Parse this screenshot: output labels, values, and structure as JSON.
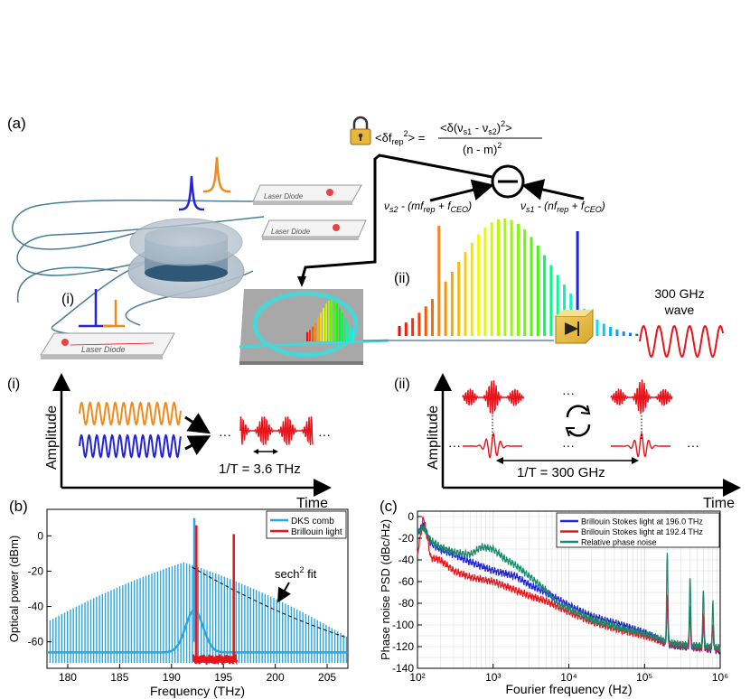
{
  "panel_a": {
    "label": "(a)",
    "formula_lhs": "<δf",
    "formula_lhs_sub": "rep",
    "formula_lhs_end": "> =",
    "formula_num": "<δ(ν",
    "formula_num_s1": "s1",
    "formula_num_mid": " - ν",
    "formula_num_s2": "s2",
    "formula_num_end": ")",
    "formula_num_sup": "2",
    "formula_num_close": ">",
    "formula_den": "(n - m)",
    "left_beat": "ν",
    "left_beat_sub": "s2",
    "left_beat_rest": " - (mf",
    "left_beat_rep": "rep",
    "left_beat_plus": " + f",
    "left_beat_ceo": "CEO",
    "left_beat_close": ")",
    "right_beat": "ν",
    "right_beat_sub": "s1",
    "right_beat_rest": " - (nf",
    "right_beat_rep": "rep",
    "right_beat_plus": " + f",
    "right_beat_ceo": "CEO",
    "right_beat_close": ")",
    "laser1": "Laser Diode",
    "laser2": "Laser Diode",
    "laser3": "Laser Diode",
    "marker_i": "(i)",
    "marker_ii": "(ii)",
    "wave_label_1": "300 GHz",
    "wave_label_2": "wave"
  },
  "sub_i": {
    "label": "(i)",
    "ylabel": "Amplitude",
    "xlabel": "Time",
    "period": "1/T = 3.6 THz",
    "dots": "···"
  },
  "sub_ii": {
    "label": "(ii)",
    "ylabel": "Amplitude",
    "xlabel": "Time",
    "period": "1/T = 300 GHz",
    "dots": "···"
  },
  "colors": {
    "orange": "#f08a1c",
    "blue": "#2323d8",
    "red": "#e8141c",
    "comb_blue": "#2aa5e0",
    "green": "#1a8a6a"
  },
  "chart_data": [
    {
      "type": "line",
      "panel": "(b)",
      "xlabel": "Frequency (THz)",
      "ylabel": "Optical power (dBm)",
      "xlim": [
        178,
        207
      ],
      "ylim": [
        -75,
        15
      ],
      "xticks": [
        180,
        185,
        190,
        195,
        200,
        205
      ],
      "yticks": [
        0,
        -20,
        -40,
        -60
      ],
      "legend": [
        "DKS comb",
        "Brillouin light"
      ],
      "legend_position": "top-right",
      "annotation": "sech",
      "annotation_sup": "2",
      "annotation_rest": " fit",
      "series": [
        {
          "name": "DKS comb",
          "color": "#2aa5e0",
          "envelope_peak_x": 191.2,
          "envelope_peak_y": -15,
          "pump_x": 192.2,
          "pump_y": 10
        },
        {
          "name": "Brillouin light",
          "color": "#e8141c",
          "lines": [
            {
              "x": 192.4,
              "y": 6
            },
            {
              "x": 196.0,
              "y": 1
            }
          ],
          "floor": -70
        }
      ]
    },
    {
      "type": "line",
      "panel": "(c)",
      "xlabel": "Fourier frequency (Hz)",
      "ylabel": "Phase noise PSD (dBc/Hz)",
      "xscale": "log",
      "xlim": [
        100,
        1000000
      ],
      "ylim": [
        -140,
        5
      ],
      "xticks": [
        "10²",
        "10³",
        "10⁴",
        "10⁵",
        "10⁶"
      ],
      "yticks": [
        0,
        -20,
        -40,
        -60,
        -80,
        -100,
        -120,
        -140
      ],
      "grid": true,
      "legend_position": "top-right",
      "series": [
        {
          "name": "Brillouin Stokes light at 196.0 THz",
          "color": "#2323d8",
          "points": [
            [
              100,
              -15
            ],
            [
              120,
              -8
            ],
            [
              150,
              -25
            ],
            [
              200,
              -30
            ],
            [
              300,
              -35
            ],
            [
              500,
              -42
            ],
            [
              1000,
              -50
            ],
            [
              2000,
              -55
            ],
            [
              3000,
              -63
            ],
            [
              5000,
              -70
            ],
            [
              10000,
              -82
            ],
            [
              20000,
              -92
            ],
            [
              50000,
              -100
            ],
            [
              100000,
              -107
            ],
            [
              150000,
              -113
            ],
            [
              200000,
              -118
            ],
            [
              300000,
              -120
            ],
            [
              500000,
              -121
            ],
            [
              1000000,
              -124
            ]
          ]
        },
        {
          "name": "Brillouin Stokes light at 192.4 THz",
          "color": "#e8141c",
          "points": [
            [
              100,
              -35
            ],
            [
              120,
              0
            ],
            [
              150,
              -38
            ],
            [
              200,
              -40
            ],
            [
              300,
              -50
            ],
            [
              500,
              -56
            ],
            [
              1000,
              -60
            ],
            [
              2000,
              -68
            ],
            [
              3000,
              -73
            ],
            [
              5000,
              -78
            ],
            [
              10000,
              -88
            ],
            [
              20000,
              -97
            ],
            [
              50000,
              -105
            ],
            [
              100000,
              -110
            ],
            [
              150000,
              -114
            ],
            [
              200000,
              -118
            ],
            [
              300000,
              -119
            ],
            [
              500000,
              -121
            ],
            [
              1000000,
              -122
            ]
          ]
        },
        {
          "name": "Relative phase noise",
          "color": "#1a8a6a",
          "points": [
            [
              100,
              -15
            ],
            [
              120,
              -10
            ],
            [
              150,
              -22
            ],
            [
              200,
              -28
            ],
            [
              300,
              -33
            ],
            [
              500,
              -35
            ],
            [
              700,
              -28
            ],
            [
              1000,
              -30
            ],
            [
              1500,
              -40
            ],
            [
              2000,
              -45
            ],
            [
              3000,
              -55
            ],
            [
              5000,
              -68
            ],
            [
              7000,
              -80
            ],
            [
              10000,
              -85
            ],
            [
              20000,
              -95
            ],
            [
              50000,
              -103
            ],
            [
              100000,
              -108
            ],
            [
              150000,
              -112
            ],
            [
              200000,
              -116
            ],
            [
              300000,
              -118
            ],
            [
              500000,
              -119
            ],
            [
              1000000,
              -121
            ]
          ]
        }
      ]
    }
  ]
}
